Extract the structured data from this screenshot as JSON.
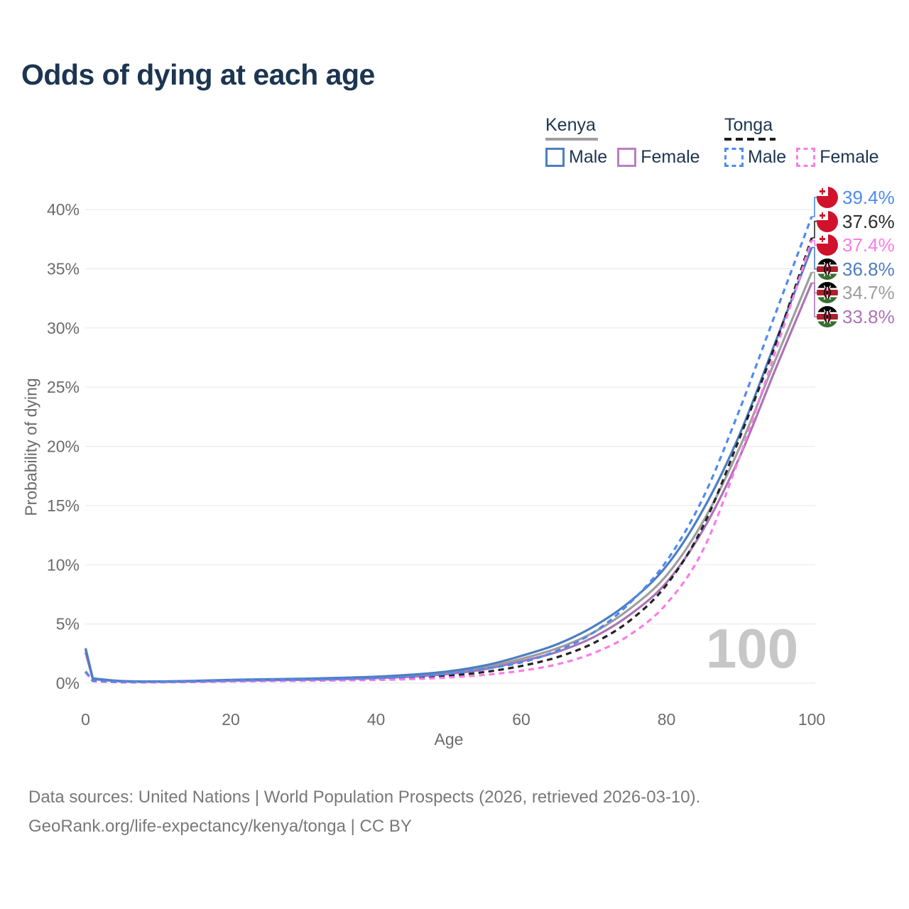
{
  "title": "Odds of dying at each age",
  "watermark": "100",
  "legend": {
    "kenya": {
      "title": "Kenya",
      "male_label": "Male",
      "female_label": "Female",
      "underline_color": "#9e9e9e",
      "male_color": "#4d7ec0",
      "female_color": "#bb7ec2"
    },
    "tonga": {
      "title": "Tonga",
      "male_label": "Male",
      "female_label": "Female",
      "underline_color": "#1d1d1d",
      "male_color": "#4e8af2",
      "female_color": "#fb7ce8"
    }
  },
  "axes": {
    "x_label": "Age",
    "y_label": "Probability of dying",
    "x_ticks": [
      0,
      20,
      40,
      60,
      80,
      100
    ],
    "y_ticks": [
      "0%",
      "5%",
      "10%",
      "15%",
      "20%",
      "25%",
      "30%",
      "35%",
      "40%"
    ]
  },
  "footer": {
    "line1": "Data sources: United Nations | World Population Prospects (2026, retrieved 2026-03-10).",
    "line2": "GeoRank.org/life-expectancy/kenya/tonga | CC BY"
  },
  "chart_data": {
    "type": "line",
    "title": "Odds of dying at each age",
    "xlabel": "Age",
    "ylabel": "Probability of dying",
    "xlim": [
      0,
      100
    ],
    "ylim": [
      0,
      40
    ],
    "y_unit": "percent",
    "grid": "horizontal",
    "legend_position": "top-right",
    "x": [
      0,
      1,
      5,
      10,
      15,
      20,
      25,
      30,
      35,
      40,
      45,
      50,
      55,
      60,
      65,
      70,
      75,
      80,
      85,
      90,
      95,
      100
    ],
    "series": [
      {
        "name": "Kenya Total",
        "country": "Kenya",
        "group": "total",
        "line": "solid",
        "color": "#9e9e9e",
        "end_value": 34.7,
        "values": [
          2.8,
          0.37,
          0.16,
          0.13,
          0.17,
          0.24,
          0.29,
          0.33,
          0.39,
          0.48,
          0.63,
          0.88,
          1.33,
          2.05,
          2.95,
          4.3,
          6.3,
          9.1,
          13.6,
          19.8,
          27.3,
          34.7
        ]
      },
      {
        "name": "Kenya Female",
        "country": "Kenya",
        "group": "female",
        "line": "solid",
        "color": "#ad73b6",
        "end_value": 33.8,
        "values": [
          2.6,
          0.34,
          0.15,
          0.12,
          0.15,
          0.2,
          0.24,
          0.28,
          0.33,
          0.42,
          0.55,
          0.78,
          1.18,
          1.85,
          2.65,
          3.9,
          5.8,
          8.5,
          12.9,
          19.0,
          26.5,
          33.8
        ]
      },
      {
        "name": "Kenya Male",
        "country": "Kenya",
        "group": "male",
        "line": "solid",
        "color": "#4d7ec0",
        "end_value": 36.8,
        "values": [
          2.95,
          0.4,
          0.18,
          0.15,
          0.2,
          0.28,
          0.33,
          0.38,
          0.45,
          0.55,
          0.72,
          1.0,
          1.5,
          2.3,
          3.3,
          4.8,
          6.9,
          9.9,
          14.6,
          20.9,
          28.8,
          36.8
        ]
      },
      {
        "name": "Tonga Total",
        "country": "Tonga",
        "group": "total",
        "line": "dashed",
        "color": "#232323",
        "end_value": 37.6,
        "values": [
          0.95,
          0.18,
          0.09,
          0.09,
          0.12,
          0.18,
          0.22,
          0.25,
          0.28,
          0.34,
          0.44,
          0.62,
          0.95,
          1.45,
          2.2,
          3.4,
          5.3,
          8.3,
          13.2,
          20.6,
          28.6,
          37.6
        ]
      },
      {
        "name": "Tonga Female",
        "country": "Tonga",
        "group": "female",
        "line": "dashed",
        "color": "#fb7ce8",
        "end_value": 37.4,
        "values": [
          0.9,
          0.16,
          0.08,
          0.08,
          0.1,
          0.14,
          0.17,
          0.2,
          0.23,
          0.27,
          0.34,
          0.48,
          0.7,
          1.05,
          1.6,
          2.55,
          4.1,
          6.7,
          11.2,
          19.0,
          28.0,
          37.4
        ]
      },
      {
        "name": "Tonga Male",
        "country": "Tonga",
        "group": "male",
        "line": "dashed",
        "color": "#4e8af2",
        "end_value": 39.4,
        "values": [
          1.0,
          0.2,
          0.1,
          0.1,
          0.14,
          0.22,
          0.27,
          0.3,
          0.34,
          0.42,
          0.55,
          0.8,
          1.22,
          1.75,
          2.75,
          4.3,
          6.8,
          10.3,
          15.6,
          23.0,
          31.2,
          39.4
        ]
      }
    ],
    "end_labels": [
      {
        "label": "39.4%",
        "value": 39.4,
        "series": "Tonga Male",
        "flag": "tonga",
        "color": "#4e8af2"
      },
      {
        "label": "37.6%",
        "value": 37.6,
        "series": "Tonga Total",
        "flag": "tonga",
        "color": "#2b2b2b"
      },
      {
        "label": "37.4%",
        "value": 37.4,
        "series": "Tonga Female",
        "flag": "tonga",
        "color": "#fb7ce8"
      },
      {
        "label": "36.8%",
        "value": 36.8,
        "series": "Kenya Male",
        "flag": "kenya",
        "color": "#4d7ec0"
      },
      {
        "label": "34.7%",
        "value": 34.7,
        "series": "Kenya Total",
        "flag": "kenya",
        "color": "#9e9e9e"
      },
      {
        "label": "33.8%",
        "value": 33.8,
        "series": "Kenya Female",
        "flag": "kenya",
        "color": "#ad73b6"
      }
    ]
  }
}
